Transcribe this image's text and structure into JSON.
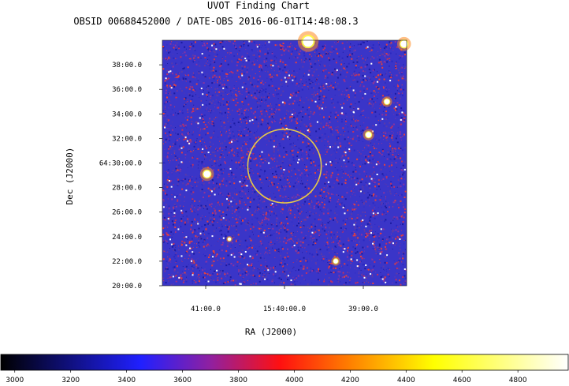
{
  "chart_data": {
    "type": "heatmap",
    "title": "UVOT Finding Chart",
    "subtitle": "OBSID 00688452000 / DATE-OBS 2016-06-01T14:48:08.3",
    "xlabel": "RA (J2000)",
    "ylabel": "Dec (J2000)",
    "x_tick_labels": [
      "41:00.0",
      "15:40:00.0",
      "39:00.0"
    ],
    "x_tick_values": [
      -60,
      0,
      60
    ],
    "xlim": [
      -93,
      93
    ],
    "y_tick_labels": [
      "20:00.0",
      "22:00.0",
      "24:00.0",
      "26:00.0",
      "28:00.0",
      "64:30:00.0",
      "32:00.0",
      "34:00.0",
      "36:00.0",
      "38:00.0"
    ],
    "y_tick_values": [
      20,
      22,
      24,
      26,
      28,
      30,
      32,
      34,
      36,
      38
    ],
    "ylim": [
      20,
      40
    ],
    "circle": {
      "center_x": 0,
      "center_y": 29.75,
      "radius_dec_arcmin": 3.0,
      "color": "#e6c84a"
    },
    "colorbar": {
      "min": 2950,
      "max": 4980,
      "ticks": [
        3000,
        3200,
        3400,
        3600,
        3800,
        4000,
        4200,
        4400,
        4600,
        4800
      ],
      "tick_labels": [
        "3000",
        "3200",
        "3400",
        "3600",
        "3800",
        "4000",
        "4200",
        "4400",
        "4600",
        "4800"
      ],
      "stops": [
        {
          "value": 2950,
          "color": "#000000"
        },
        {
          "value": 3450,
          "color": "#2020ff"
        },
        {
          "value": 3700,
          "color": "#9020a0"
        },
        {
          "value": 3950,
          "color": "#ff1010"
        },
        {
          "value": 4200,
          "color": "#ff8000"
        },
        {
          "value": 4500,
          "color": "#ffff00"
        },
        {
          "value": 4980,
          "color": "#ffffff"
        }
      ]
    },
    "image_colors": {
      "background": "#3a35c8",
      "noise": [
        "#2a28c0",
        "#5a3aa8",
        "#c03060",
        "#e8403a",
        "#1a1aa0",
        "#8a34a0"
      ]
    },
    "bright_sources": [
      {
        "x": 18,
        "y": 39.9,
        "size": 3
      },
      {
        "x": 78,
        "y": 35.0,
        "size": 1.5
      },
      {
        "x": 64,
        "y": 32.3,
        "size": 1.6
      },
      {
        "x": -59,
        "y": 29.1,
        "size": 2
      },
      {
        "x": 39,
        "y": 22.0,
        "size": 1.3
      },
      {
        "x": 91,
        "y": 39.7,
        "size": 2
      },
      {
        "x": -42,
        "y": 23.8,
        "size": 0.9
      }
    ]
  }
}
